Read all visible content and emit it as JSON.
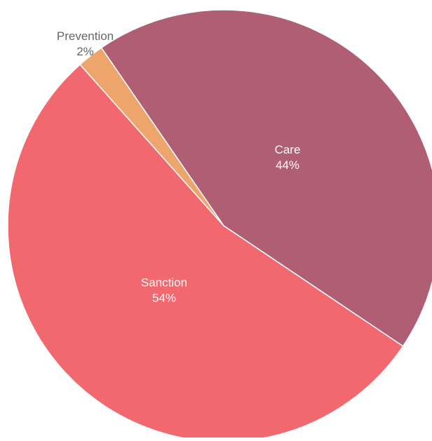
{
  "chart_data": {
    "type": "pie",
    "title": "",
    "slices": [
      {
        "label": "Care",
        "value": 44,
        "value_label": "44%",
        "color": "#b05e74"
      },
      {
        "label": "Sanction",
        "value": 54,
        "value_label": "54%",
        "color": "#f1686f"
      },
      {
        "label": "Prevention",
        "value": 2,
        "value_label": "2%",
        "color": "#eda56c"
      }
    ],
    "label_colors": {
      "inside": "#ffffff",
      "outside": "#666666"
    },
    "legend": "none",
    "slice_separator_color": "#ffffff"
  }
}
